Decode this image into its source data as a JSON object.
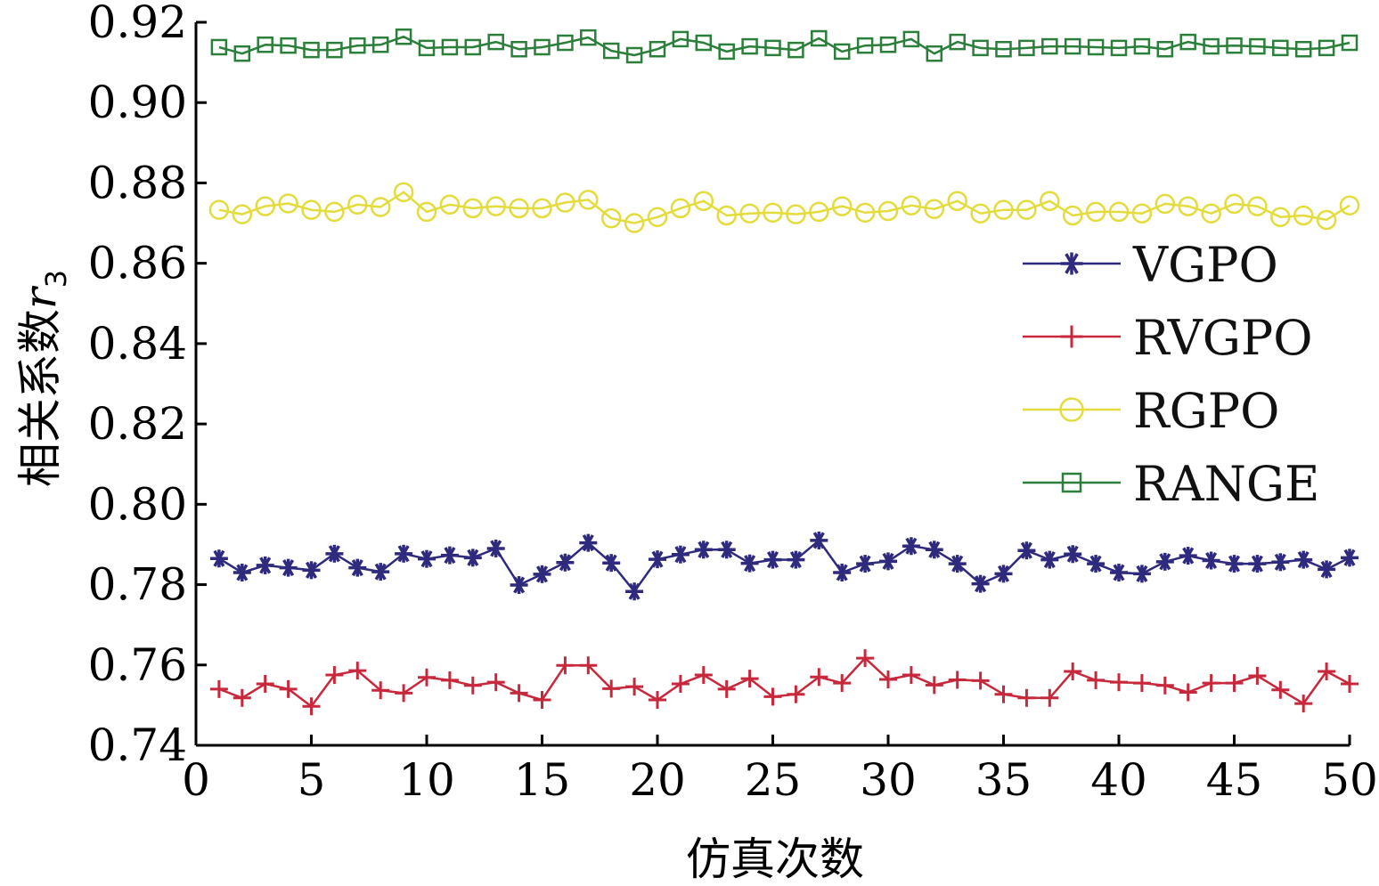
{
  "chart_data": {
    "type": "line",
    "title": "",
    "xlabel": "仿真次数",
    "ylabel": "相关系数",
    "ylabel_symbol": "r",
    "ylabel_subscript": "3",
    "xlim": [
      0,
      50
    ],
    "ylim": [
      0.74,
      0.92
    ],
    "x_ticks": [
      0,
      5,
      10,
      15,
      20,
      25,
      30,
      35,
      40,
      45,
      50
    ],
    "y_ticks": [
      0.74,
      0.76,
      0.78,
      0.8,
      0.82,
      0.84,
      0.86,
      0.88,
      0.9,
      0.92
    ],
    "y_tick_labels": [
      "0.74",
      "0.76",
      "0.78",
      "0.80",
      "0.82",
      "0.84",
      "0.86",
      "0.88",
      "0.90",
      "0.92"
    ],
    "grid": false,
    "legend_position": "right",
    "x": [
      1,
      2,
      3,
      4,
      5,
      6,
      7,
      8,
      9,
      10,
      11,
      12,
      13,
      14,
      15,
      16,
      17,
      18,
      19,
      20,
      21,
      22,
      23,
      24,
      25,
      26,
      27,
      28,
      29,
      30,
      31,
      32,
      33,
      34,
      35,
      36,
      37,
      38,
      39,
      40,
      41,
      42,
      43,
      44,
      45,
      46,
      47,
      48,
      49,
      50
    ],
    "series": [
      {
        "name": "VGPO",
        "color": "#2e2a7e",
        "marker": "asterisk",
        "values": [
          0.7865,
          0.783,
          0.7848,
          0.7842,
          0.7836,
          0.7877,
          0.7842,
          0.7832,
          0.7877,
          0.7864,
          0.7873,
          0.7867,
          0.789,
          0.7799,
          0.7826,
          0.7855,
          0.7904,
          0.7854,
          0.7783,
          0.7863,
          0.7875,
          0.7887,
          0.7887,
          0.7853,
          0.7862,
          0.7862,
          0.791,
          0.783,
          0.7852,
          0.7858,
          0.7896,
          0.7887,
          0.7852,
          0.7802,
          0.7827,
          0.7885,
          0.7862,
          0.7876,
          0.7852,
          0.783,
          0.7827,
          0.7857,
          0.7872,
          0.786,
          0.7852,
          0.7852,
          0.7856,
          0.7862,
          0.7838,
          0.7867
        ]
      },
      {
        "name": "RVGPO",
        "color": "#c8283c",
        "marker": "plus",
        "values": [
          0.754,
          0.7518,
          0.7553,
          0.754,
          0.7497,
          0.7575,
          0.7586,
          0.7537,
          0.753,
          0.7569,
          0.7562,
          0.7549,
          0.7557,
          0.753,
          0.7513,
          0.7599,
          0.7599,
          0.7541,
          0.7546,
          0.7513,
          0.7553,
          0.7575,
          0.754,
          0.7566,
          0.7521,
          0.7527,
          0.757,
          0.7555,
          0.7617,
          0.7564,
          0.7575,
          0.755,
          0.7563,
          0.7561,
          0.7527,
          0.7518,
          0.7518,
          0.7584,
          0.7562,
          0.7557,
          0.7555,
          0.7549,
          0.7532,
          0.7555,
          0.7555,
          0.7573,
          0.7538,
          0.7504,
          0.7584,
          0.7553
        ]
      },
      {
        "name": "RGPO",
        "color": "#e3dc3c",
        "marker": "circle",
        "values": [
          0.8733,
          0.8722,
          0.8742,
          0.8749,
          0.8733,
          0.8728,
          0.8746,
          0.874,
          0.8777,
          0.8728,
          0.8746,
          0.8737,
          0.8742,
          0.8737,
          0.8737,
          0.8751,
          0.8758,
          0.8712,
          0.87,
          0.8715,
          0.8737,
          0.8755,
          0.8719,
          0.8724,
          0.8726,
          0.8722,
          0.8728,
          0.8742,
          0.8726,
          0.873,
          0.8744,
          0.8735,
          0.8755,
          0.8724,
          0.8733,
          0.8733,
          0.8755,
          0.8719,
          0.8728,
          0.8728,
          0.8724,
          0.8748,
          0.8742,
          0.8724,
          0.8748,
          0.8742,
          0.8715,
          0.8719,
          0.8708,
          0.8744
        ]
      },
      {
        "name": "RANGE",
        "color": "#2b7f3a",
        "marker": "square",
        "values": [
          0.9138,
          0.9122,
          0.9144,
          0.9142,
          0.9131,
          0.9131,
          0.9142,
          0.9144,
          0.9164,
          0.9136,
          0.9138,
          0.9138,
          0.9151,
          0.9133,
          0.9138,
          0.9149,
          0.9162,
          0.9129,
          0.9118,
          0.9133,
          0.9158,
          0.9149,
          0.9127,
          0.914,
          0.9136,
          0.9131,
          0.916,
          0.9127,
          0.9142,
          0.9144,
          0.9158,
          0.9122,
          0.9151,
          0.9136,
          0.9133,
          0.9136,
          0.914,
          0.914,
          0.9138,
          0.9136,
          0.914,
          0.9133,
          0.9151,
          0.914,
          0.9142,
          0.914,
          0.9136,
          0.9133,
          0.9136,
          0.9149
        ]
      }
    ]
  }
}
